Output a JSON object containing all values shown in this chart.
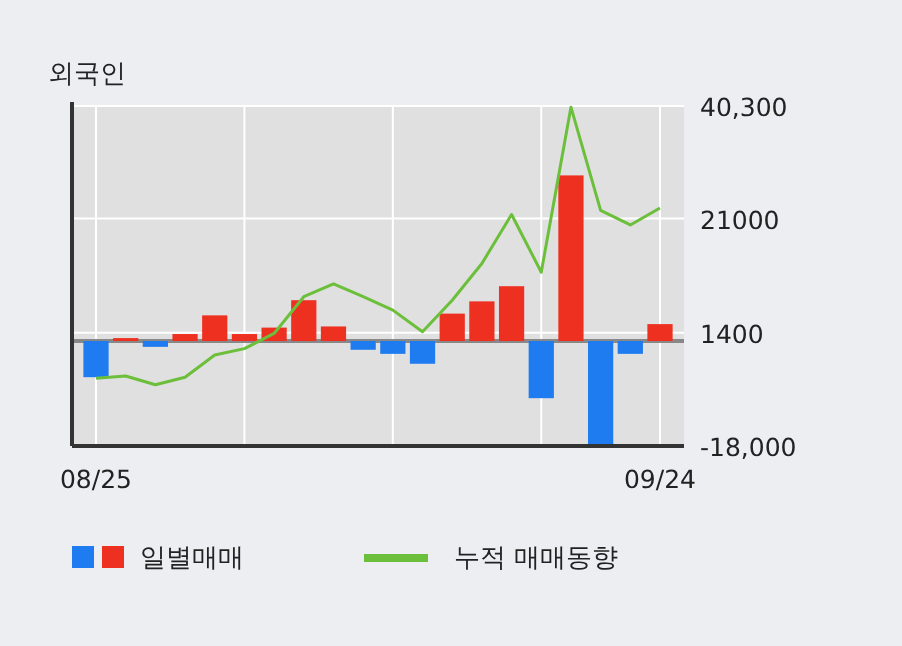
{
  "chart_data": {
    "type": "bar",
    "title": "외국인",
    "categories": [
      "08/25",
      null,
      null,
      null,
      null,
      null,
      null,
      null,
      null,
      null,
      null,
      null,
      null,
      null,
      null,
      null,
      null,
      null,
      null,
      "09/24"
    ],
    "series": [
      {
        "name": "일별매매",
        "colors": [
          "#1e7cf0",
          "#ee3020",
          "#1e7cf0",
          "#ee3020",
          "#ee3020",
          "#ee3020",
          "#ee3020",
          "#ee3020",
          "#ee3020",
          "#1e7cf0",
          "#1e7cf0",
          "#1e7cf0",
          "#ee3020",
          "#ee3020",
          "#ee3020",
          "#1e7cf0",
          "#ee3020",
          "#1e7cf0",
          "#1e7cf0",
          "#ee3020"
        ],
        "values": [
          -6200,
          500,
          -1000,
          1200,
          4400,
          1200,
          2300,
          7000,
          2500,
          -1500,
          -2200,
          -3900,
          4700,
          6800,
          9400,
          -9800,
          28400,
          -17700,
          -2200,
          2900
        ]
      },
      {
        "type": "line",
        "name": "누적 매매동향",
        "color": "#6cbf3a",
        "values": [
          -6400,
          -6000,
          -7500,
          -6200,
          -2400,
          -1300,
          1300,
          7600,
          9800,
          7600,
          5300,
          1600,
          7000,
          13300,
          21700,
          11800,
          40100,
          22400,
          19900,
          22800
        ]
      }
    ],
    "ylim": [
      -18000,
      40300
    ],
    "yticks": [
      {
        "value": 40300,
        "label": "40,300"
      },
      21000,
      1400,
      {
        "value": -18000,
        "label": "-18,000"
      }
    ],
    "ref_lines": [
      {
        "axis": "y",
        "value": 0,
        "color": "#888888"
      }
    ],
    "grid": true,
    "legend": "bottom"
  }
}
